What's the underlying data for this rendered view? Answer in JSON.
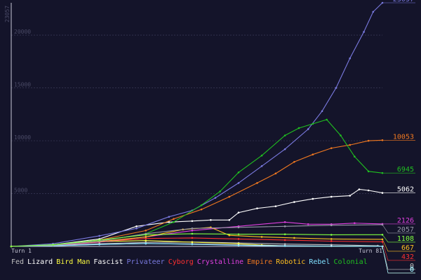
{
  "chart_data": {
    "type": "line",
    "title": "",
    "xlabel": "",
    "ylabel": "",
    "x_range": [
      1,
      81
    ],
    "ylim": [
      0,
      23057
    ],
    "x_tick_labels": [
      "Turn 1",
      "Turn 81"
    ],
    "y_max_label": "23057",
    "y_ticks": [
      {
        "value": 5000,
        "label": "5000"
      },
      {
        "value": 10000,
        "label": "10000"
      },
      {
        "value": 15000,
        "label": "15000"
      },
      {
        "value": 20000,
        "label": "20000"
      }
    ],
    "grid": true,
    "legend_position": "bottom",
    "series": [
      {
        "name": "Fed",
        "color": "#c0c0c0",
        "final": 0,
        "values": [
          [
            1,
            0
          ],
          [
            10,
            80
          ],
          [
            20,
            250
          ],
          [
            30,
            380
          ],
          [
            40,
            420
          ],
          [
            50,
            330
          ],
          [
            60,
            220
          ],
          [
            70,
            150
          ],
          [
            80,
            60
          ],
          [
            81,
            0
          ]
        ]
      },
      {
        "name": "Lizard",
        "color": "#ffffff",
        "final": 5062,
        "values": [
          [
            1,
            0
          ],
          [
            10,
            150
          ],
          [
            20,
            700
          ],
          [
            28,
            1900
          ],
          [
            35,
            2300
          ],
          [
            40,
            2400
          ],
          [
            44,
            2500
          ],
          [
            48,
            2500
          ],
          [
            50,
            3200
          ],
          [
            54,
            3600
          ],
          [
            58,
            3800
          ],
          [
            62,
            4200
          ],
          [
            66,
            4500
          ],
          [
            70,
            4700
          ],
          [
            74,
            4800
          ],
          [
            76,
            5400
          ],
          [
            78,
            5300
          ],
          [
            81,
            5062
          ]
        ]
      },
      {
        "name": "Bird Man",
        "color": "#ffff40",
        "final": 0,
        "values": [
          [
            1,
            0
          ],
          [
            10,
            100
          ],
          [
            20,
            450
          ],
          [
            30,
            550
          ],
          [
            40,
            400
          ],
          [
            50,
            250
          ],
          [
            55,
            130
          ],
          [
            60,
            40
          ],
          [
            81,
            0
          ]
        ]
      },
      {
        "name": "Fascist",
        "color": "#ffffff",
        "final": 0,
        "values": [
          [
            1,
            0
          ],
          [
            10,
            60
          ],
          [
            20,
            200
          ],
          [
            30,
            260
          ],
          [
            40,
            240
          ],
          [
            50,
            130
          ],
          [
            60,
            60
          ],
          [
            70,
            30
          ],
          [
            81,
            0
          ]
        ]
      },
      {
        "name": "Privateer",
        "color": "#7a7ae0",
        "final": 23057,
        "values": [
          [
            1,
            0
          ],
          [
            10,
            250
          ],
          [
            20,
            1000
          ],
          [
            28,
            1700
          ],
          [
            35,
            2800
          ],
          [
            40,
            3400
          ],
          [
            45,
            4600
          ],
          [
            50,
            6000
          ],
          [
            55,
            7600
          ],
          [
            60,
            9200
          ],
          [
            65,
            11100
          ],
          [
            68,
            12800
          ],
          [
            71,
            15000
          ],
          [
            74,
            17800
          ],
          [
            77,
            20300
          ],
          [
            79,
            22200
          ],
          [
            81,
            23057
          ]
        ]
      },
      {
        "name": "Cyborg",
        "color": "#ff3030",
        "final": 432,
        "values": [
          [
            1,
            0
          ],
          [
            10,
            120
          ],
          [
            20,
            450
          ],
          [
            30,
            750
          ],
          [
            40,
            800
          ],
          [
            50,
            700
          ],
          [
            60,
            600
          ],
          [
            70,
            500
          ],
          [
            81,
            432
          ]
        ]
      },
      {
        "name": "Crystalline",
        "color": "#e040e0",
        "final": 2126,
        "values": [
          [
            1,
            0
          ],
          [
            10,
            100
          ],
          [
            20,
            400
          ],
          [
            30,
            900
          ],
          [
            40,
            1500
          ],
          [
            50,
            1900
          ],
          [
            60,
            2300
          ],
          [
            65,
            2100
          ],
          [
            70,
            2100
          ],
          [
            75,
            2200
          ],
          [
            81,
            2126
          ]
        ]
      },
      {
        "name": "Empire",
        "color": "#f07820",
        "final": 10053,
        "values": [
          [
            1,
            0
          ],
          [
            10,
            120
          ],
          [
            20,
            600
          ],
          [
            30,
            1500
          ],
          [
            36,
            2600
          ],
          [
            42,
            3500
          ],
          [
            48,
            4700
          ],
          [
            54,
            6000
          ],
          [
            58,
            6900
          ],
          [
            62,
            8000
          ],
          [
            66,
            8700
          ],
          [
            70,
            9300
          ],
          [
            74,
            9600
          ],
          [
            78,
            10000
          ],
          [
            81,
            10053
          ]
        ]
      },
      {
        "name": "Robotic",
        "color": "#ffc020",
        "final": 667,
        "values": [
          [
            1,
            0
          ],
          [
            10,
            120
          ],
          [
            20,
            450
          ],
          [
            30,
            900
          ],
          [
            38,
            1600
          ],
          [
            44,
            1800
          ],
          [
            48,
            1050
          ],
          [
            55,
            900
          ],
          [
            62,
            800
          ],
          [
            70,
            700
          ],
          [
            81,
            667
          ]
        ]
      },
      {
        "name": "Rebel",
        "color": "#80e0ff",
        "final": 0,
        "values": [
          [
            1,
            0
          ],
          [
            10,
            60
          ],
          [
            20,
            180
          ],
          [
            30,
            280
          ],
          [
            40,
            200
          ],
          [
            50,
            100
          ],
          [
            60,
            40
          ],
          [
            81,
            0
          ]
        ]
      },
      {
        "name": "Colonial",
        "color": "#20c020",
        "final": 6945,
        "values": [
          [
            1,
            0
          ],
          [
            10,
            150
          ],
          [
            20,
            500
          ],
          [
            30,
            1200
          ],
          [
            36,
            2300
          ],
          [
            42,
            3900
          ],
          [
            46,
            5200
          ],
          [
            50,
            7000
          ],
          [
            55,
            8600
          ],
          [
            60,
            10500
          ],
          [
            63,
            11200
          ],
          [
            66,
            11600
          ],
          [
            69,
            12000
          ],
          [
            72,
            10500
          ],
          [
            75,
            8500
          ],
          [
            78,
            7100
          ],
          [
            81,
            6945
          ]
        ]
      },
      {
        "name": "",
        "color": "#9898a8",
        "final": 2057,
        "values": [
          [
            1,
            0
          ],
          [
            10,
            100
          ],
          [
            20,
            500
          ],
          [
            30,
            1200
          ],
          [
            40,
            1700
          ],
          [
            50,
            1800
          ],
          [
            60,
            1900
          ],
          [
            70,
            2000
          ],
          [
            81,
            2057
          ]
        ]
      },
      {
        "name": "",
        "color": "#80ff40",
        "final": 1108,
        "values": [
          [
            1,
            0
          ],
          [
            10,
            150
          ],
          [
            20,
            600
          ],
          [
            30,
            1100
          ],
          [
            40,
            1200
          ],
          [
            50,
            1150
          ],
          [
            60,
            1150
          ],
          [
            70,
            1100
          ],
          [
            81,
            1108
          ]
        ]
      }
    ]
  }
}
